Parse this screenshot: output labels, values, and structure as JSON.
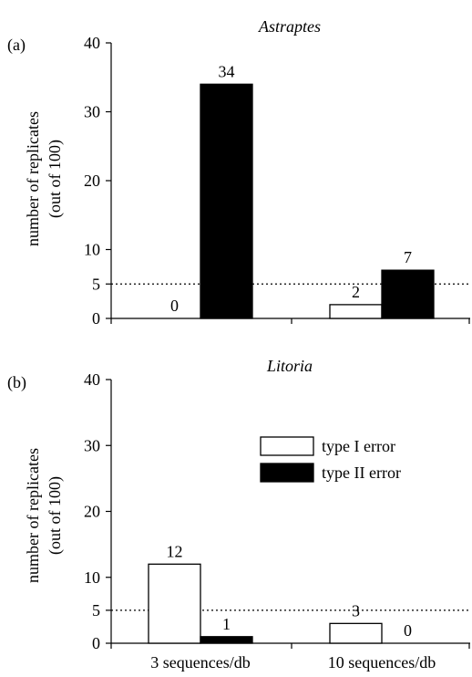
{
  "chart_data": [
    {
      "panel_label": "(a)",
      "title": "Astraptes",
      "type": "bar",
      "ylabel_lines": [
        "number of replicates",
        "(out of 100)"
      ],
      "ylim": [
        0,
        40
      ],
      "yticks": [
        0,
        5,
        10,
        20,
        30,
        40
      ],
      "reference_line": {
        "y": 5,
        "style": "dotted"
      },
      "categories": [
        "3 sequences/db",
        "10 sequences/db"
      ],
      "series": [
        {
          "name": "type I error",
          "color": "#ffffff",
          "values": [
            0,
            2
          ]
        },
        {
          "name": "type II error",
          "color": "#000000",
          "values": [
            34,
            7
          ]
        }
      ],
      "data_labels": [
        [
          "0",
          "34"
        ],
        [
          "2",
          "7"
        ]
      ],
      "show_legend": false,
      "show_xticklabels": false
    },
    {
      "panel_label": "(b)",
      "title": "Litoria",
      "type": "bar",
      "ylabel_lines": [
        "number of replicates",
        "(out of 100)"
      ],
      "ylim": [
        0,
        40
      ],
      "yticks": [
        0,
        5,
        10,
        20,
        30,
        40
      ],
      "reference_line": {
        "y": 5,
        "style": "dotted"
      },
      "categories": [
        "3 sequences/db",
        "10 sequences/db"
      ],
      "series": [
        {
          "name": "type I error",
          "color": "#ffffff",
          "values": [
            12,
            3
          ]
        },
        {
          "name": "type II error",
          "color": "#000000",
          "values": [
            1,
            0
          ]
        }
      ],
      "data_labels": [
        [
          "12",
          "1"
        ],
        [
          "3",
          "0"
        ]
      ],
      "show_legend": true,
      "legend_position": "upper-right",
      "show_xticklabels": true
    }
  ]
}
